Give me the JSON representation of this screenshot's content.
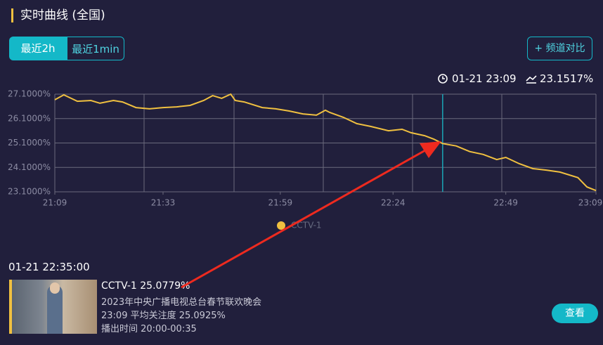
{
  "header": {
    "title": "实时曲线 (全国)"
  },
  "tabs": [
    "最近2h",
    "最近1min"
  ],
  "compare_button": "+ 频道对比",
  "cursor": {
    "time": "01-21 23:09",
    "value": "23.1517%"
  },
  "chart_data": {
    "type": "line",
    "x": [
      "21:09",
      "21:11",
      "21:14",
      "21:17",
      "21:19",
      "21:22",
      "21:24",
      "21:27",
      "21:30",
      "21:33",
      "21:36",
      "21:39",
      "21:42",
      "21:44",
      "21:46",
      "21:48",
      "21:49",
      "21:51",
      "21:55",
      "21:58",
      "22:01",
      "22:04",
      "22:07",
      "22:09",
      "22:10",
      "22:13",
      "22:16",
      "22:19",
      "22:23",
      "22:26",
      "22:28",
      "22:31",
      "22:33",
      "22:35",
      "22:38",
      "22:41",
      "22:44",
      "22:47",
      "22:49",
      "22:52",
      "22:55",
      "22:58",
      "23:01",
      "23:05",
      "23:07",
      "23:09"
    ],
    "xlim": [
      "21:09",
      "23:09"
    ],
    "xticks": [
      "21:09",
      "21:33",
      "21:59",
      "22:24",
      "22:49",
      "23:09"
    ],
    "ylim": [
      23.1,
      27.1
    ],
    "yticks": [
      {
        "value": 23.1,
        "label": "23.1000%"
      },
      {
        "value": 24.1,
        "label": "24.1000%"
      },
      {
        "value": 25.1,
        "label": "25.1000%"
      },
      {
        "value": 26.1,
        "label": "26.1000%"
      },
      {
        "value": 27.1,
        "label": "27.1000%"
      }
    ],
    "series": [
      {
        "name": "CCTV-1",
        "color": "#f0c040",
        "values": [
          26.87,
          27.07,
          26.81,
          26.84,
          26.73,
          26.84,
          26.78,
          26.55,
          26.5,
          26.55,
          26.58,
          26.64,
          26.84,
          27.04,
          26.93,
          27.1,
          26.84,
          26.78,
          26.55,
          26.5,
          26.41,
          26.29,
          26.24,
          26.44,
          26.35,
          26.15,
          25.89,
          25.78,
          25.6,
          25.66,
          25.52,
          25.4,
          25.26,
          25.0779,
          24.98,
          24.75,
          24.63,
          24.42,
          24.51,
          24.25,
          24.05,
          23.99,
          23.91,
          23.68,
          23.3,
          23.1517
        ]
      }
    ],
    "cursor_x": "22:35",
    "grid": true,
    "legend": "bottom"
  },
  "panel": {
    "time": "01-21 22:35:00",
    "channel": "CCTV-1 25.0779%",
    "program": "2023年中央广播电视总台春节联欢晚会",
    "average": "23:09 平均关注度 25.0925%",
    "airtime": "播出时间 20:00-00:35",
    "button": "查看"
  }
}
